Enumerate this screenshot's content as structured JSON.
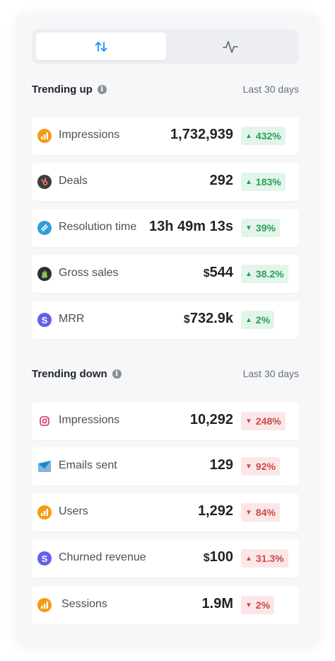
{
  "colors": {
    "accent": "#1a8cff",
    "up_text": "#27a05a",
    "up_bg": "#e3f5ea",
    "down_text": "#d04848",
    "down_bg": "#fbe7e7"
  },
  "toggle": {
    "options": [
      {
        "icon": "sort-arrows-icon",
        "active": true
      },
      {
        "icon": "activity-line-icon",
        "active": false
      }
    ]
  },
  "trending_up": {
    "title": "Trending up",
    "range": "Last 30 days",
    "items": [
      {
        "name": "Impressions",
        "currency": "",
        "value": "1,732,939",
        "change": "432%",
        "direction": "up",
        "source_icon": "google-analytics-icon"
      },
      {
        "name": "Deals",
        "currency": "",
        "value": "292",
        "change": "183%",
        "direction": "up",
        "source_icon": "hubspot-icon"
      },
      {
        "name": "Resolution time",
        "currency": "",
        "value": "13h 49m 13s",
        "change": "39%",
        "direction": "down",
        "source_icon": "zendesk-like-icon"
      },
      {
        "name": "Gross sales",
        "currency": "$",
        "value": "544",
        "change": "38.2%",
        "direction": "up",
        "source_icon": "shopify-icon"
      },
      {
        "name": "MRR",
        "currency": "$",
        "value": "732.9k",
        "change": "2%",
        "direction": "up",
        "source_icon": "stripe-icon"
      }
    ]
  },
  "trending_down": {
    "title": "Trending down",
    "range": "Last 30 days",
    "items": [
      {
        "name": "Impressions",
        "currency": "",
        "value": "10,292",
        "change": "248%",
        "direction": "down",
        "source_icon": "instagram-icon"
      },
      {
        "name": "Emails sent",
        "currency": "",
        "value": "129",
        "change": "92%",
        "direction": "down",
        "source_icon": "campaign-monitor-icon"
      },
      {
        "name": "Users",
        "currency": "",
        "value": "1,292",
        "change": "84%",
        "direction": "down",
        "source_icon": "google-analytics-icon"
      },
      {
        "name": "Churned revenue",
        "currency": "$",
        "value": "100",
        "change": "31.3%",
        "direction": "up",
        "source_icon": "stripe-icon"
      },
      {
        "name": "Sessions",
        "currency": "",
        "value": "1.9M",
        "change": "2%",
        "direction": "down",
        "source_icon": "google-analytics-icon"
      }
    ]
  }
}
